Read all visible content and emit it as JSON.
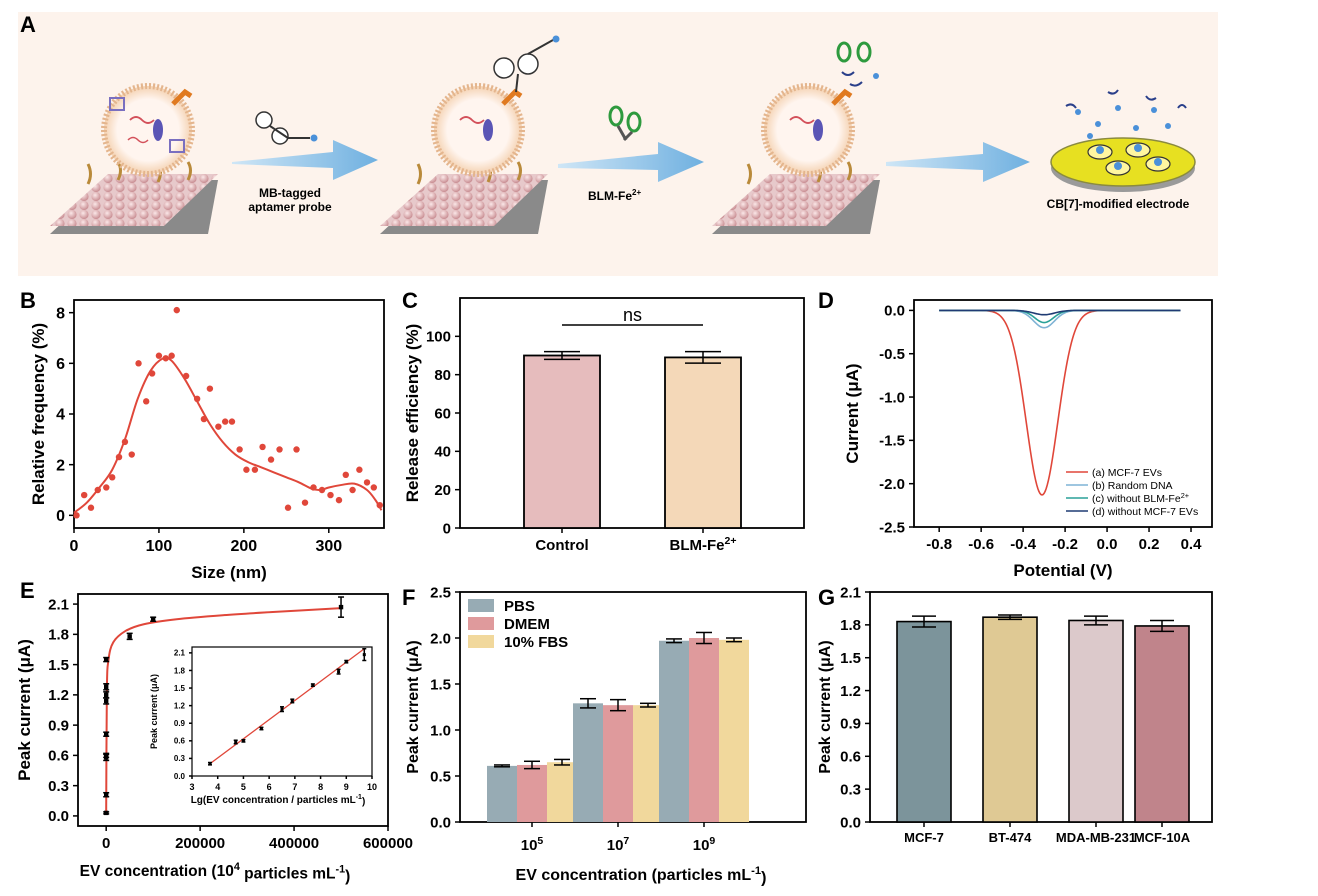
{
  "panels": {
    "A": {
      "letter": "A",
      "labels": {
        "probe": [
          "MB-tagged",
          "aptamer probe"
        ],
        "blm": "BLM-Fe",
        "blm_sup": "2+",
        "electrode": "CB[7]-modified electrode"
      },
      "colors": {
        "background": "#fdf3ec",
        "arrow": "#7fb6e0",
        "electrode": "#e4e400"
      }
    },
    "B": {
      "letter": "B"
    },
    "C": {
      "letter": "C"
    },
    "D": {
      "letter": "D"
    },
    "E": {
      "letter": "E"
    },
    "F": {
      "letter": "F"
    },
    "G": {
      "letter": "G"
    }
  },
  "chart_data": [
    {
      "panel": "B",
      "type": "scatter",
      "xlabel": "Size (nm)",
      "ylabel": "Relative frequency (%)",
      "xlim": [
        0,
        365
      ],
      "ylim": [
        -0.5,
        8.5
      ],
      "xticks": [
        0,
        100,
        200,
        300
      ],
      "yticks": [
        0,
        2,
        4,
        6,
        8
      ],
      "point_color": "#e0473a",
      "line_color": "#e0473a",
      "points": [
        [
          3,
          0
        ],
        [
          12,
          0.8
        ],
        [
          20,
          0.3
        ],
        [
          28,
          1.0
        ],
        [
          38,
          1.1
        ],
        [
          45,
          1.5
        ],
        [
          53,
          2.3
        ],
        [
          60,
          2.9
        ],
        [
          68,
          2.4
        ],
        [
          76,
          6.0
        ],
        [
          85,
          4.5
        ],
        [
          92,
          5.6
        ],
        [
          100,
          6.3
        ],
        [
          108,
          6.2
        ],
        [
          115,
          6.3
        ],
        [
          121,
          8.1
        ],
        [
          132,
          5.5
        ],
        [
          145,
          4.6
        ],
        [
          153,
          3.8
        ],
        [
          160,
          5.0
        ],
        [
          170,
          3.5
        ],
        [
          178,
          3.7
        ],
        [
          186,
          3.7
        ],
        [
          195,
          2.6
        ],
        [
          203,
          1.8
        ],
        [
          213,
          1.8
        ],
        [
          222,
          2.7
        ],
        [
          232,
          2.2
        ],
        [
          242,
          2.6
        ],
        [
          252,
          0.3
        ],
        [
          262,
          2.6
        ],
        [
          272,
          0.5
        ],
        [
          282,
          1.1
        ],
        [
          292,
          1.0
        ],
        [
          302,
          0.8
        ],
        [
          312,
          0.6
        ],
        [
          320,
          1.6
        ],
        [
          328,
          1.0
        ],
        [
          336,
          1.8
        ],
        [
          345,
          1.3
        ],
        [
          353,
          1.1
        ],
        [
          360,
          0.4
        ]
      ],
      "fit": [
        [
          0,
          0.1
        ],
        [
          15,
          0.5
        ],
        [
          30,
          1.1
        ],
        [
          45,
          1.8
        ],
        [
          60,
          3.0
        ],
        [
          75,
          4.6
        ],
        [
          90,
          5.7
        ],
        [
          105,
          6.2
        ],
        [
          115,
          6.1
        ],
        [
          130,
          5.4
        ],
        [
          145,
          4.5
        ],
        [
          160,
          3.6
        ],
        [
          175,
          2.9
        ],
        [
          190,
          2.4
        ],
        [
          205,
          2.1
        ],
        [
          220,
          1.9
        ],
        [
          235,
          1.7
        ],
        [
          250,
          1.5
        ],
        [
          265,
          1.3
        ],
        [
          280,
          1.05
        ],
        [
          290,
          1.0
        ],
        [
          300,
          1.1
        ],
        [
          315,
          1.2
        ],
        [
          330,
          1.25
        ],
        [
          345,
          1.0
        ],
        [
          355,
          0.6
        ],
        [
          362,
          0.2
        ]
      ]
    },
    {
      "panel": "C",
      "type": "bar",
      "xlabel": "",
      "ylabel": "Release efficiency (%)",
      "categories": [
        "Control",
        "BLM-Fe"
      ],
      "category_sup": [
        "",
        "2+"
      ],
      "values": [
        90,
        89
      ],
      "errors": [
        2,
        3
      ],
      "colors": [
        "#e6bcbd",
        "#f4d8b8"
      ],
      "ylim": [
        0,
        120
      ],
      "yticks": [
        0,
        20,
        40,
        60,
        80,
        100
      ],
      "annotation": "ns"
    },
    {
      "panel": "D",
      "type": "line",
      "xlabel": "Potential (V)",
      "ylabel": "Current (μA)",
      "xlim": [
        -0.92,
        0.5
      ],
      "ylim": [
        -2.5,
        0.12
      ],
      "xticks": [
        -0.8,
        -0.6,
        -0.4,
        -0.2,
        0.0,
        0.2,
        0.4
      ],
      "xtick_labels": [
        "-0.8",
        "-0.6",
        "-0.4",
        "-0.2",
        "0.0",
        "0.2",
        "0.4"
      ],
      "yticks": [
        0.0,
        -0.5,
        -1.0,
        -1.5,
        -2.0,
        -2.5
      ],
      "ytick_labels": [
        "0.0",
        "-0.5",
        "-1.0",
        "-1.5",
        "-2.0",
        "-2.5"
      ],
      "legend": "bottom-right",
      "x_range": [
        -0.8,
        0.35
      ],
      "series": [
        {
          "name": "(a) MCF-7 EVs",
          "color": "#e0473a",
          "peak_center": -0.31,
          "peak_amplitude": -2.13,
          "peak_width": 0.075
        },
        {
          "name": "(b) Random DNA",
          "color": "#7fb3d5",
          "peak_center": -0.3,
          "peak_amplitude": -0.2,
          "peak_width": 0.05
        },
        {
          "name": "(c) without BLM-Fe",
          "sup": "2+",
          "color": "#2aa198",
          "peak_center": -0.3,
          "peak_amplitude": -0.14,
          "peak_width": 0.045
        },
        {
          "name": "(d) without MCF-7 EVs",
          "color": "#1f3b73",
          "peak_center": -0.3,
          "peak_amplitude": -0.05,
          "peak_width": 0.05
        }
      ]
    },
    {
      "panel": "E",
      "type": "scatter",
      "xlabel": "EV concentration (10",
      "xlabel_sup": "4",
      "xlabel_end": " particles mL",
      "xlabel_end_sup": "-1",
      "xlabel_close": ")",
      "ylabel": "Peak current (μA)",
      "xlim": [
        -60000,
        600000
      ],
      "ylim": [
        -0.1,
        2.2
      ],
      "xticks": [
        0,
        200000,
        400000,
        600000
      ],
      "yticks": [
        0.0,
        0.3,
        0.6,
        0.9,
        1.2,
        1.5,
        1.8,
        2.1
      ],
      "ytick_labels": [
        "0.0",
        "0.3",
        "0.6",
        "0.9",
        "1.2",
        "1.5",
        "1.8",
        "2.1"
      ],
      "line_color": "#e0473a",
      "points": [
        [
          0,
          0.03
        ],
        [
          0,
          0.21
        ],
        [
          0,
          0.58
        ],
        [
          0,
          0.6
        ],
        [
          0,
          0.81
        ],
        [
          0,
          1.14
        ],
        [
          0,
          1.2
        ],
        [
          0,
          1.28
        ],
        [
          0,
          1.55
        ],
        [
          50000,
          1.78
        ],
        [
          100000,
          1.95
        ],
        [
          500000,
          2.07
        ]
      ],
      "errors": [
        0.01,
        0.02,
        0.03,
        0.02,
        0.02,
        0.03,
        0.03,
        0.03,
        0.02,
        0.03,
        0.02,
        0.1
      ],
      "fit": [
        [
          0,
          0.05
        ],
        [
          1500,
          1.25
        ],
        [
          5000,
          1.55
        ],
        [
          15000,
          1.72
        ],
        [
          40000,
          1.83
        ],
        [
          80000,
          1.9
        ],
        [
          150000,
          1.95
        ],
        [
          250000,
          1.99
        ],
        [
          350000,
          2.02
        ],
        [
          500000,
          2.06
        ]
      ],
      "inset": {
        "xlabel": "Lg(EV concentration / particles mL",
        "xlabel_sup": "-1",
        "xlabel_close": ")",
        "ylabel": "Peak current (μA)",
        "xlim": [
          3,
          10
        ],
        "ylim": [
          0,
          2.2
        ],
        "xticks": [
          3,
          4,
          5,
          6,
          7,
          8,
          9,
          10
        ],
        "yticks": [
          0.0,
          0.3,
          0.6,
          0.9,
          1.2,
          1.5,
          1.8,
          2.1
        ],
        "ytick_labels": [
          "0.0",
          "0.3",
          "0.6",
          "0.9",
          "1.2",
          "1.5",
          "1.8",
          "2.1"
        ],
        "points": [
          [
            3.7,
            0.21
          ],
          [
            4.7,
            0.58
          ],
          [
            5.0,
            0.6
          ],
          [
            5.7,
            0.81
          ],
          [
            6.5,
            1.14
          ],
          [
            6.9,
            1.28
          ],
          [
            7.7,
            1.55
          ],
          [
            8.7,
            1.78
          ],
          [
            9.0,
            1.95
          ],
          [
            9.7,
            2.07
          ]
        ],
        "errors": [
          0.02,
          0.03,
          0.02,
          0.02,
          0.04,
          0.03,
          0.02,
          0.04,
          0.02,
          0.1
        ],
        "fit": [
          [
            3.7,
            0.21
          ],
          [
            9.7,
            2.17
          ]
        ]
      }
    },
    {
      "panel": "F",
      "type": "bar",
      "xlabel": "EV concentration (particles mL",
      "xlabel_sup": "-1",
      "xlabel_close": ")",
      "ylabel": "Peak current (μA)",
      "categories": [
        "10",
        "10",
        "10"
      ],
      "category_sup": [
        "5",
        "7",
        "9"
      ],
      "ylim": [
        0,
        2.5
      ],
      "yticks": [
        0.0,
        0.5,
        1.0,
        1.5,
        2.0,
        2.5
      ],
      "ytick_labels": [
        "0.0",
        "0.5",
        "1.0",
        "1.5",
        "2.0",
        "2.5"
      ],
      "legend": "top-left",
      "series": [
        {
          "name": "PBS",
          "color": "#97abb4",
          "values": [
            0.61,
            1.29,
            1.97
          ],
          "errors": [
            0.01,
            0.05,
            0.02
          ]
        },
        {
          "name": "DMEM",
          "color": "#df9a9c",
          "values": [
            0.62,
            1.27,
            2.0
          ],
          "errors": [
            0.04,
            0.06,
            0.06
          ]
        },
        {
          "name": "10% FBS",
          "color": "#f1d89c",
          "values": [
            0.65,
            1.27,
            1.98
          ],
          "errors": [
            0.03,
            0.02,
            0.02
          ]
        }
      ]
    },
    {
      "panel": "G",
      "type": "bar",
      "xlabel": "",
      "ylabel": "Peak current (μA)",
      "categories": [
        "MCF-7",
        "BT-474",
        "MDA-MB-231",
        "MCF-10A"
      ],
      "values": [
        1.83,
        1.87,
        1.84,
        1.79
      ],
      "errors": [
        0.05,
        0.02,
        0.04,
        0.05
      ],
      "colors": [
        "#7c949b",
        "#dfc994",
        "#dcc9cb",
        "#c0848b"
      ],
      "ylim": [
        0,
        2.1
      ],
      "yticks": [
        0.0,
        0.3,
        0.6,
        0.9,
        1.2,
        1.5,
        1.8,
        2.1
      ],
      "ytick_labels": [
        "0.0",
        "0.3",
        "0.6",
        "0.9",
        "1.2",
        "1.5",
        "1.8",
        "2.1"
      ]
    }
  ]
}
